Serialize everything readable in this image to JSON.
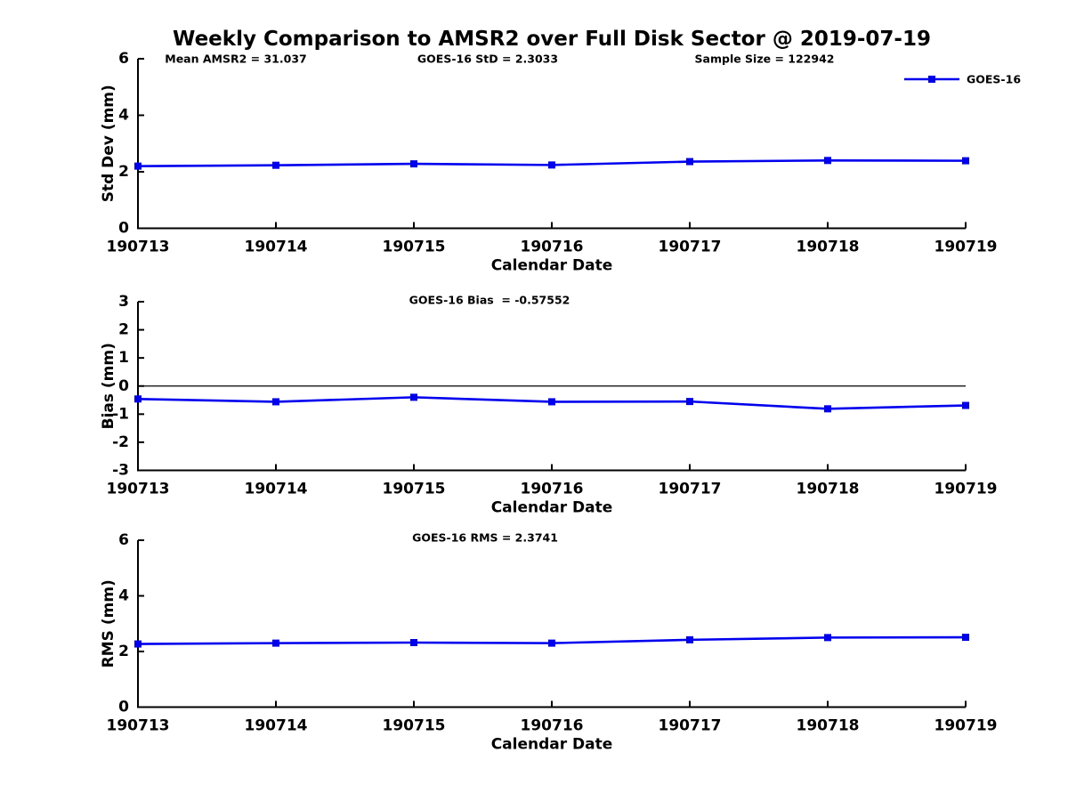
{
  "figure": {
    "title": "Weekly Comparison to AMSR2 over Full Disk Sector @ 2019-07-19"
  },
  "colors": {
    "line": "#0000EE",
    "axis": "#000000"
  },
  "chart_data": [
    {
      "type": "line",
      "panel": "std-dev",
      "annotations": [
        "Mean AMSR2 = 31.037",
        "GOES-16 StD = 2.3033",
        "Sample Size = 122942"
      ],
      "ylabel": "Std Dev (mm)",
      "xlabel": "Calendar Date",
      "ylim": [
        0,
        6
      ],
      "yticks": [
        0,
        2,
        4,
        6
      ],
      "grid": false,
      "categories": [
        "190713",
        "190714",
        "190715",
        "190716",
        "190717",
        "190718",
        "190719"
      ],
      "series": [
        {
          "name": "GOES-16",
          "color": "#0000EE",
          "marker": "square",
          "values": [
            2.2,
            2.23,
            2.28,
            2.24,
            2.36,
            2.4,
            2.39
          ]
        }
      ],
      "legend": {
        "show": true,
        "label": "GOES-16",
        "position": "top-right"
      }
    },
    {
      "type": "line",
      "panel": "bias",
      "annotations": [
        "GOES-16 Bias  = -0.57552"
      ],
      "ylabel": "Bias (mm)",
      "xlabel": "Calendar Date",
      "ylim": [
        -3,
        3
      ],
      "yticks": [
        -3,
        -2,
        -1,
        0,
        1,
        2,
        3
      ],
      "zero_line": true,
      "grid": false,
      "categories": [
        "190713",
        "190714",
        "190715",
        "190716",
        "190717",
        "190718",
        "190719"
      ],
      "series": [
        {
          "name": "GOES-16",
          "color": "#0000EE",
          "marker": "square",
          "values": [
            -0.46,
            -0.56,
            -0.4,
            -0.56,
            -0.55,
            -0.81,
            -0.69
          ]
        }
      ],
      "legend": {
        "show": false,
        "label": "",
        "position": ""
      }
    },
    {
      "type": "line",
      "panel": "rms",
      "annotations": [
        "GOES-16 RMS = 2.3741"
      ],
      "ylabel": "RMS (mm)",
      "xlabel": "Calendar Date",
      "ylim": [
        0,
        6
      ],
      "yticks": [
        0,
        2,
        4,
        6
      ],
      "grid": false,
      "categories": [
        "190713",
        "190714",
        "190715",
        "190716",
        "190717",
        "190718",
        "190719"
      ],
      "series": [
        {
          "name": "GOES-16",
          "color": "#0000EE",
          "marker": "square",
          "values": [
            2.27,
            2.3,
            2.32,
            2.3,
            2.42,
            2.5,
            2.51
          ]
        }
      ],
      "legend": {
        "show": false,
        "label": "",
        "position": ""
      }
    }
  ]
}
